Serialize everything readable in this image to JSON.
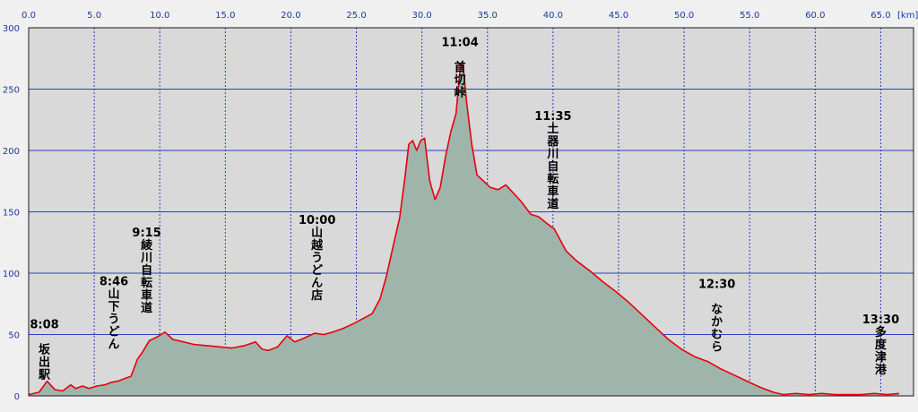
{
  "chart_data": {
    "type": "area",
    "xlabel": "",
    "ylabel": "",
    "x_unit": "[km]",
    "xlim": [
      0,
      67.5
    ],
    "ylim": [
      0,
      300
    ],
    "grid": true,
    "x_ticks": [
      "0.0",
      "5.0",
      "10.0",
      "15.0",
      "20.0",
      "25.0",
      "30.0",
      "35.0",
      "40.0",
      "45.0",
      "50.0",
      "55.0",
      "60.0",
      "65.0"
    ],
    "y_ticks": [
      "0",
      "50",
      "100",
      "150",
      "200",
      "250",
      "300"
    ],
    "colors": {
      "line": "#e8000b",
      "fill": "#9fb5ab",
      "grid": "#2f3fbf",
      "plot_bg": "#d9d9d9",
      "axis_text": "#1a3a9c"
    },
    "series": [
      {
        "values": [
          [
            0.0,
            1
          ],
          [
            0.8,
            3
          ],
          [
            1.4,
            12
          ],
          [
            2.0,
            5
          ],
          [
            2.6,
            4
          ],
          [
            3.2,
            9
          ],
          [
            3.6,
            6
          ],
          [
            4.1,
            8
          ],
          [
            4.6,
            6
          ],
          [
            5.2,
            8
          ],
          [
            5.8,
            9
          ],
          [
            6.3,
            11
          ],
          [
            6.8,
            12
          ],
          [
            7.3,
            14
          ],
          [
            7.8,
            16
          ],
          [
            8.3,
            30
          ],
          [
            8.7,
            36
          ],
          [
            9.2,
            45
          ],
          [
            9.8,
            48
          ],
          [
            10.4,
            52
          ],
          [
            11.0,
            46
          ],
          [
            11.8,
            44
          ],
          [
            12.6,
            42
          ],
          [
            13.5,
            41
          ],
          [
            14.5,
            40
          ],
          [
            15.5,
            39
          ],
          [
            16.5,
            41
          ],
          [
            17.3,
            44
          ],
          [
            17.8,
            38
          ],
          [
            18.3,
            37
          ],
          [
            19.0,
            40
          ],
          [
            19.7,
            49
          ],
          [
            20.3,
            44
          ],
          [
            21.0,
            47
          ],
          [
            21.8,
            51
          ],
          [
            22.5,
            50
          ],
          [
            23.2,
            52
          ],
          [
            24.0,
            55
          ],
          [
            24.8,
            59
          ],
          [
            25.5,
            63
          ],
          [
            26.2,
            67
          ],
          [
            26.8,
            79
          ],
          [
            27.3,
            98
          ],
          [
            27.8,
            122
          ],
          [
            28.3,
            145
          ],
          [
            28.7,
            178
          ],
          [
            29.0,
            205
          ],
          [
            29.3,
            208
          ],
          [
            29.6,
            200
          ],
          [
            29.9,
            208
          ],
          [
            30.2,
            210
          ],
          [
            30.6,
            175
          ],
          [
            31.0,
            160
          ],
          [
            31.4,
            170
          ],
          [
            31.8,
            195
          ],
          [
            32.2,
            215
          ],
          [
            32.6,
            230
          ],
          [
            32.9,
            265
          ],
          [
            33.1,
            273
          ],
          [
            33.4,
            240
          ],
          [
            33.8,
            205
          ],
          [
            34.2,
            180
          ],
          [
            34.7,
            175
          ],
          [
            35.2,
            170
          ],
          [
            35.8,
            168
          ],
          [
            36.4,
            172
          ],
          [
            37.0,
            165
          ],
          [
            37.6,
            158
          ],
          [
            38.3,
            148
          ],
          [
            38.9,
            146
          ],
          [
            39.6,
            140
          ],
          [
            40.1,
            136
          ],
          [
            40.5,
            128
          ],
          [
            41.0,
            118
          ],
          [
            41.8,
            110
          ],
          [
            42.8,
            102
          ],
          [
            43.8,
            93
          ],
          [
            44.8,
            85
          ],
          [
            45.8,
            76
          ],
          [
            46.8,
            66
          ],
          [
            47.8,
            56
          ],
          [
            48.8,
            46
          ],
          [
            49.8,
            38
          ],
          [
            50.8,
            32
          ],
          [
            51.8,
            28
          ],
          [
            52.8,
            22
          ],
          [
            53.8,
            17
          ],
          [
            54.8,
            12
          ],
          [
            55.8,
            7
          ],
          [
            56.8,
            3
          ],
          [
            57.6,
            1
          ],
          [
            58.5,
            2
          ],
          [
            59.5,
            1
          ],
          [
            60.5,
            2
          ],
          [
            61.5,
            1
          ],
          [
            62.5,
            1
          ],
          [
            63.5,
            1
          ],
          [
            64.5,
            2
          ],
          [
            65.5,
            1
          ],
          [
            66.4,
            2
          ]
        ]
      }
    ],
    "annotations": [
      {
        "x": 1.2,
        "y": 55,
        "lines": [
          "8:08",
          "",
          "坂",
          "出",
          "駅"
        ]
      },
      {
        "x": 6.5,
        "y": 90,
        "lines": [
          "8:46",
          "山",
          "下",
          "う",
          "ど",
          "ん"
        ]
      },
      {
        "x": 9.0,
        "y": 130,
        "lines": [
          "9:15",
          "綾",
          "川",
          "自",
          "転",
          "車",
          "道"
        ]
      },
      {
        "x": 22.0,
        "y": 140,
        "lines": [
          "10:00",
          "山",
          "越",
          "う",
          "ど",
          "ん",
          "店"
        ]
      },
      {
        "x": 32.9,
        "y": 285,
        "lines": [
          "11:04",
          "",
          "首",
          "切",
          "峠"
        ]
      },
      {
        "x": 40.0,
        "y": 225,
        "lines": [
          "11:35",
          "土",
          "器",
          "川",
          "自",
          "転",
          "車",
          "道"
        ]
      },
      {
        "x": 52.5,
        "y": 88,
        "lines": [
          "12:30",
          "",
          "な",
          "か",
          "む",
          "ら"
        ]
      },
      {
        "x": 65.0,
        "y": 59,
        "lines": [
          "13:30",
          "多",
          "度",
          "津",
          "港"
        ]
      }
    ]
  }
}
